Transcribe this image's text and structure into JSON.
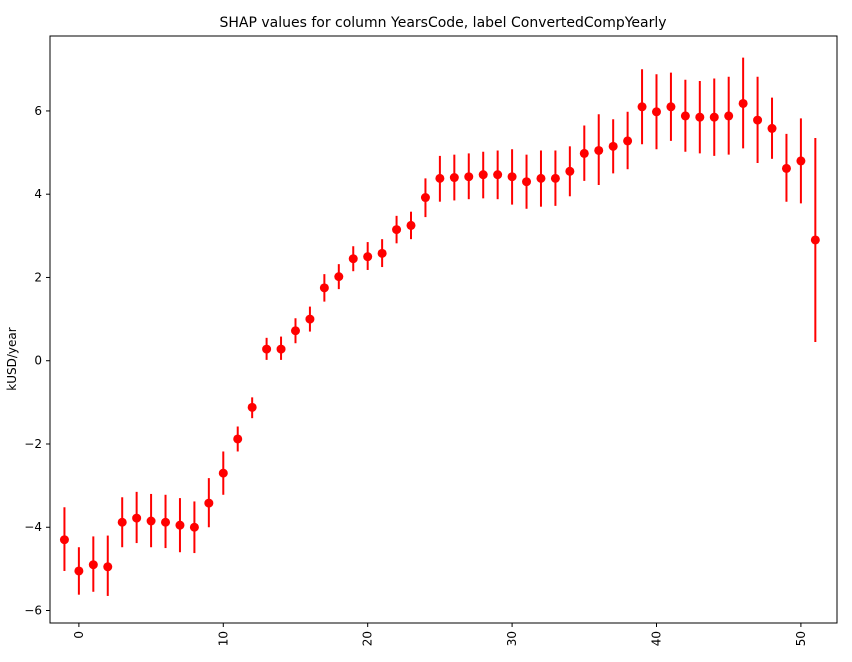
{
  "chart_data": {
    "type": "scatter",
    "title": "SHAP values for column YearsCode, label ConvertedCompYearly",
    "xlabel": "",
    "ylabel": "kUSD/year",
    "xlim": [
      -2,
      52.5
    ],
    "ylim": [
      -6.3,
      7.8
    ],
    "x_ticks": [
      0,
      10,
      20,
      30,
      40,
      50
    ],
    "y_ticks": [
      -6,
      -4,
      -2,
      0,
      2,
      4,
      6
    ],
    "x_tick_rotation": -90,
    "grid": false,
    "legend": "none",
    "marker_color": "#ff0000",
    "series": [
      {
        "points": [
          {
            "x": -1,
            "y": -4.3,
            "low": -5.05,
            "high": -3.52
          },
          {
            "x": 0,
            "y": -5.05,
            "low": -5.62,
            "high": -4.48
          },
          {
            "x": 1,
            "y": -4.9,
            "low": -5.55,
            "high": -4.22
          },
          {
            "x": 2,
            "y": -4.95,
            "low": -5.65,
            "high": -4.2
          },
          {
            "x": 3,
            "y": -3.88,
            "low": -4.48,
            "high": -3.28
          },
          {
            "x": 4,
            "y": -3.78,
            "low": -4.38,
            "high": -3.15
          },
          {
            "x": 5,
            "y": -3.85,
            "low": -4.48,
            "high": -3.2
          },
          {
            "x": 6,
            "y": -3.88,
            "low": -4.5,
            "high": -3.22
          },
          {
            "x": 7,
            "y": -3.95,
            "low": -4.6,
            "high": -3.3
          },
          {
            "x": 8,
            "y": -4.0,
            "low": -4.62,
            "high": -3.38
          },
          {
            "x": 9,
            "y": -3.42,
            "low": -4.0,
            "high": -2.82
          },
          {
            "x": 10,
            "y": -2.7,
            "low": -3.22,
            "high": -2.18
          },
          {
            "x": 11,
            "y": -1.88,
            "low": -2.18,
            "high": -1.58
          },
          {
            "x": 12,
            "y": -1.12,
            "low": -1.38,
            "high": -0.88
          },
          {
            "x": 13,
            "y": 0.28,
            "low": 0.02,
            "high": 0.55
          },
          {
            "x": 14,
            "y": 0.28,
            "low": 0.02,
            "high": 0.58
          },
          {
            "x": 15,
            "y": 0.72,
            "low": 0.42,
            "high": 1.02
          },
          {
            "x": 16,
            "y": 1.0,
            "low": 0.7,
            "high": 1.3
          },
          {
            "x": 17,
            "y": 1.75,
            "low": 1.42,
            "high": 2.08
          },
          {
            "x": 18,
            "y": 2.02,
            "low": 1.72,
            "high": 2.32
          },
          {
            "x": 19,
            "y": 2.45,
            "low": 2.15,
            "high": 2.75
          },
          {
            "x": 20,
            "y": 2.5,
            "low": 2.18,
            "high": 2.85
          },
          {
            "x": 21,
            "y": 2.58,
            "low": 2.25,
            "high": 2.92
          },
          {
            "x": 22,
            "y": 3.15,
            "low": 2.82,
            "high": 3.48
          },
          {
            "x": 23,
            "y": 3.25,
            "low": 2.92,
            "high": 3.58
          },
          {
            "x": 24,
            "y": 3.92,
            "low": 3.45,
            "high": 4.38
          },
          {
            "x": 25,
            "y": 4.38,
            "low": 3.82,
            "high": 4.92
          },
          {
            "x": 26,
            "y": 4.4,
            "low": 3.85,
            "high": 4.95
          },
          {
            "x": 27,
            "y": 4.42,
            "low": 3.88,
            "high": 4.98
          },
          {
            "x": 28,
            "y": 4.47,
            "low": 3.9,
            "high": 5.02
          },
          {
            "x": 29,
            "y": 4.47,
            "low": 3.88,
            "high": 5.05
          },
          {
            "x": 30,
            "y": 4.42,
            "low": 3.75,
            "high": 5.08
          },
          {
            "x": 31,
            "y": 4.3,
            "low": 3.65,
            "high": 4.95
          },
          {
            "x": 32,
            "y": 4.38,
            "low": 3.7,
            "high": 5.05
          },
          {
            "x": 33,
            "y": 4.38,
            "low": 3.72,
            "high": 5.05
          },
          {
            "x": 34,
            "y": 4.55,
            "low": 3.95,
            "high": 5.15
          },
          {
            "x": 35,
            "y": 4.98,
            "low": 4.32,
            "high": 5.65
          },
          {
            "x": 36,
            "y": 5.05,
            "low": 4.22,
            "high": 5.92
          },
          {
            "x": 37,
            "y": 5.15,
            "low": 4.5,
            "high": 5.8
          },
          {
            "x": 38,
            "y": 5.28,
            "low": 4.6,
            "high": 5.98
          },
          {
            "x": 39,
            "y": 6.1,
            "low": 5.2,
            "high": 7.0
          },
          {
            "x": 40,
            "y": 5.98,
            "low": 5.08,
            "high": 6.88
          },
          {
            "x": 41,
            "y": 6.1,
            "low": 5.28,
            "high": 6.92
          },
          {
            "x": 42,
            "y": 5.88,
            "low": 5.02,
            "high": 6.75
          },
          {
            "x": 43,
            "y": 5.85,
            "low": 4.98,
            "high": 6.72
          },
          {
            "x": 44,
            "y": 5.85,
            "low": 4.92,
            "high": 6.78
          },
          {
            "x": 45,
            "y": 5.88,
            "low": 4.95,
            "high": 6.82
          },
          {
            "x": 46,
            "y": 6.18,
            "low": 5.1,
            "high": 7.28
          },
          {
            "x": 47,
            "y": 5.78,
            "low": 4.75,
            "high": 6.82
          },
          {
            "x": 48,
            "y": 5.58,
            "low": 4.85,
            "high": 6.32
          },
          {
            "x": 49,
            "y": 4.62,
            "low": 3.82,
            "high": 5.45
          },
          {
            "x": 50,
            "y": 4.8,
            "low": 3.78,
            "high": 5.82
          },
          {
            "x": 51,
            "y": 2.9,
            "low": 0.45,
            "high": 5.35
          }
        ]
      }
    ]
  }
}
